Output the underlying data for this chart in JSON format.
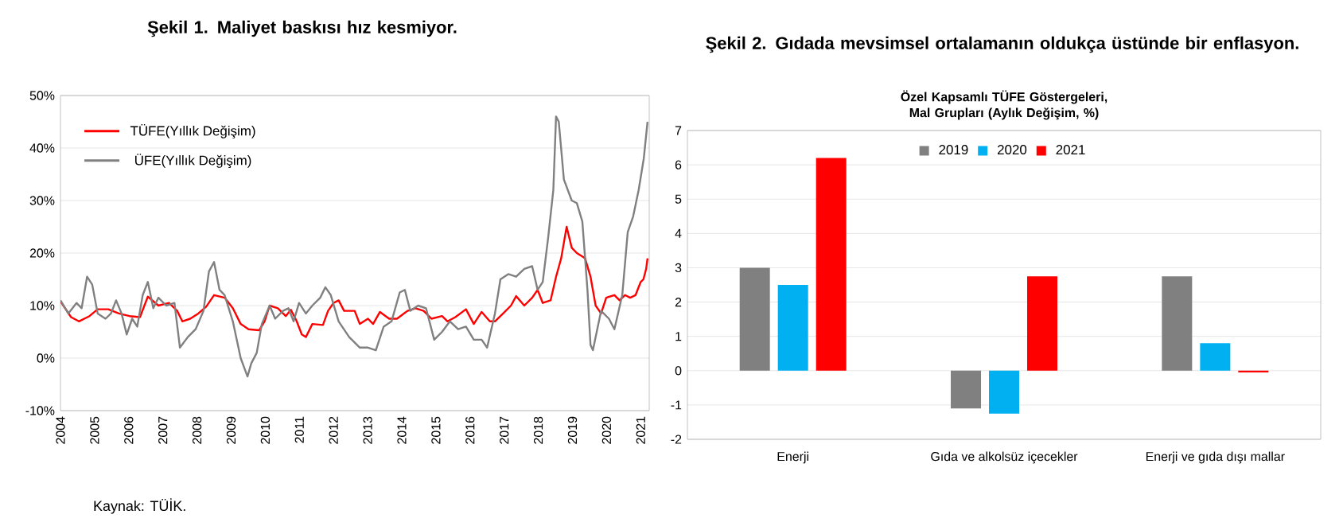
{
  "chart_data": [
    {
      "type": "line",
      "title": "Şekil 1. Maliyet baskısı hız kesmiyor.",
      "annotations": [
        "Kaynak: TÜİK."
      ],
      "xlim": [
        2004,
        2021.25
      ],
      "xticks": [
        2004,
        2005,
        2006,
        2007,
        2008,
        2009,
        2010,
        2011,
        2012,
        2013,
        2014,
        2015,
        2016,
        2017,
        2018,
        2019,
        2020,
        2021
      ],
      "ylim": [
        -10,
        50
      ],
      "yticks": [
        {
          "value": -10,
          "label": "-10%"
        },
        {
          "value": 0,
          "label": "0%"
        },
        {
          "value": 10,
          "label": "10%"
        },
        {
          "value": 20,
          "label": "20%"
        },
        {
          "value": 30,
          "label": "30%"
        },
        {
          "value": 40,
          "label": "40%"
        },
        {
          "value": 50,
          "label": "50%"
        }
      ],
      "grid": "y",
      "legend": "top left",
      "marker": "none",
      "series": [
        {
          "name": "TÜFE(Yıllık Değişim)",
          "color": "#ff0000",
          "x": [
            2004.0,
            2004.31,
            2004.54,
            2004.85,
            2005.09,
            2005.4,
            2005.71,
            2006.02,
            2006.33,
            2006.56,
            2006.87,
            2007.18,
            2007.42,
            2007.57,
            2007.8,
            2008.04,
            2008.27,
            2008.5,
            2008.81,
            2009.05,
            2009.28,
            2009.51,
            2009.82,
            2009.98,
            2010.13,
            2010.37,
            2010.6,
            2010.75,
            2010.91,
            2011.07,
            2011.19,
            2011.38,
            2011.69,
            2011.84,
            2012.0,
            2012.15,
            2012.31,
            2012.62,
            2012.77,
            2013.01,
            2013.16,
            2013.36,
            2013.63,
            2013.86,
            2014.17,
            2014.4,
            2014.64,
            2014.87,
            2015.18,
            2015.34,
            2015.57,
            2015.88,
            2016.11,
            2016.34,
            2016.58,
            2016.73,
            2016.97,
            2017.2,
            2017.35,
            2017.59,
            2017.82,
            2017.98,
            2018.13,
            2018.36,
            2018.52,
            2018.67,
            2018.83,
            2018.98,
            2019.13,
            2019.37,
            2019.53,
            2019.68,
            2019.84,
            2019.99,
            2020.23,
            2020.38,
            2020.54,
            2020.69,
            2020.85,
            2021.0,
            2021.08,
            2021.16,
            2021.2
          ],
          "values": [
            10.8,
            7.8,
            7.0,
            8.0,
            9.3,
            9.3,
            8.5,
            8.0,
            7.8,
            11.7,
            10.0,
            10.5,
            9.0,
            7.0,
            7.5,
            8.5,
            9.8,
            12.0,
            11.5,
            9.5,
            6.5,
            5.5,
            5.3,
            7.0,
            10.0,
            9.5,
            8.0,
            9.2,
            7.2,
            4.5,
            4.0,
            6.5,
            6.3,
            9.0,
            10.5,
            11.0,
            9.0,
            9.0,
            6.5,
            7.5,
            6.5,
            8.8,
            7.5,
            7.5,
            9.0,
            9.5,
            9.0,
            7.5,
            8.0,
            7.0,
            7.8,
            9.3,
            6.5,
            8.8,
            7.0,
            7.0,
            8.5,
            10.0,
            11.8,
            10.0,
            11.5,
            13.0,
            10.5,
            11.0,
            15.5,
            19.0,
            25.0,
            21.0,
            20.0,
            19.0,
            15.5,
            10.0,
            8.5,
            11.5,
            12.0,
            11.0,
            12.0,
            11.5,
            12.0,
            14.5,
            15.0,
            17.0,
            19.0
          ]
        },
        {
          "name": "ÜFE(Yıllık Değişim)",
          "color": "#808080",
          "x": [
            2004.0,
            2004.23,
            2004.47,
            2004.62,
            2004.78,
            2004.93,
            2005.09,
            2005.32,
            2005.48,
            2005.63,
            2005.79,
            2005.94,
            2006.1,
            2006.25,
            2006.41,
            2006.56,
            2006.72,
            2006.87,
            2007.1,
            2007.34,
            2007.5,
            2007.73,
            2007.96,
            2008.19,
            2008.35,
            2008.5,
            2008.66,
            2008.81,
            2009.05,
            2009.28,
            2009.48,
            2009.59,
            2009.75,
            2009.9,
            2010.13,
            2010.29,
            2010.52,
            2010.68,
            2010.83,
            2010.99,
            2011.19,
            2011.38,
            2011.61,
            2011.76,
            2011.92,
            2012.15,
            2012.46,
            2012.77,
            2013.01,
            2013.24,
            2013.47,
            2013.7,
            2013.94,
            2014.09,
            2014.25,
            2014.48,
            2014.71,
            2014.95,
            2015.18,
            2015.41,
            2015.65,
            2015.88,
            2016.11,
            2016.34,
            2016.5,
            2016.73,
            2016.89,
            2017.12,
            2017.35,
            2017.59,
            2017.82,
            2017.98,
            2018.13,
            2018.29,
            2018.44,
            2018.52,
            2018.6,
            2018.75,
            2018.98,
            2019.13,
            2019.29,
            2019.44,
            2019.53,
            2019.6,
            2019.84,
            2020.07,
            2020.23,
            2020.46,
            2020.62,
            2020.78,
            2020.94,
            2021.09,
            2021.2
          ],
          "values": [
            11,
            8.5,
            10.5,
            9.5,
            15.5,
            14,
            8.5,
            7.5,
            8.5,
            11,
            8.5,
            4.5,
            7.5,
            6,
            12,
            14.5,
            9.5,
            11.5,
            10,
            10.5,
            2,
            4,
            5.5,
            9,
            16.5,
            18.3,
            13,
            12,
            7,
            0,
            -3.5,
            -1,
            1,
            6.5,
            10,
            7.5,
            9,
            9.5,
            7,
            10.5,
            8.5,
            10,
            11.5,
            13.5,
            12,
            7,
            4,
            2,
            2,
            1.5,
            6,
            7,
            12.5,
            13,
            9,
            10,
            9.5,
            3.5,
            5,
            7,
            5.5,
            6,
            3.5,
            3.5,
            2,
            8.5,
            15,
            16,
            15.5,
            17,
            17.5,
            13,
            14.5,
            23,
            32,
            46,
            45,
            34,
            30,
            29.5,
            26,
            13,
            2.5,
            1.5,
            9,
            7.5,
            5.5,
            12,
            24,
            27,
            32,
            38,
            45
          ]
        }
      ]
    },
    {
      "type": "bar",
      "title": "Şekil 2. Gıdada mevsimsel ortalamanın oldukça üstünde bir enflasyon.",
      "subtitle": "Özel Kapsamlı TÜFE Göstergeleri, Mal Grupları (Aylık Değişim, %)",
      "categories": [
        "Enerji",
        "Gıda ve alkolsüz içecekler",
        "Enerji ve gıda dışı mallar"
      ],
      "ylim": [
        -2,
        7
      ],
      "yticks": [
        -2,
        -1,
        0,
        1,
        2,
        3,
        4,
        5,
        6,
        7
      ],
      "grid": "y",
      "legend": "top",
      "series": [
        {
          "name": "2019",
          "color": "#808080",
          "values": [
            3.0,
            -1.1,
            2.75
          ]
        },
        {
          "name": "2020",
          "color": "#00b0f0",
          "values": [
            2.5,
            -1.25,
            0.8
          ]
        },
        {
          "name": "2021",
          "color": "#ff0000",
          "values": [
            6.2,
            2.75,
            -0.05
          ]
        }
      ]
    }
  ]
}
